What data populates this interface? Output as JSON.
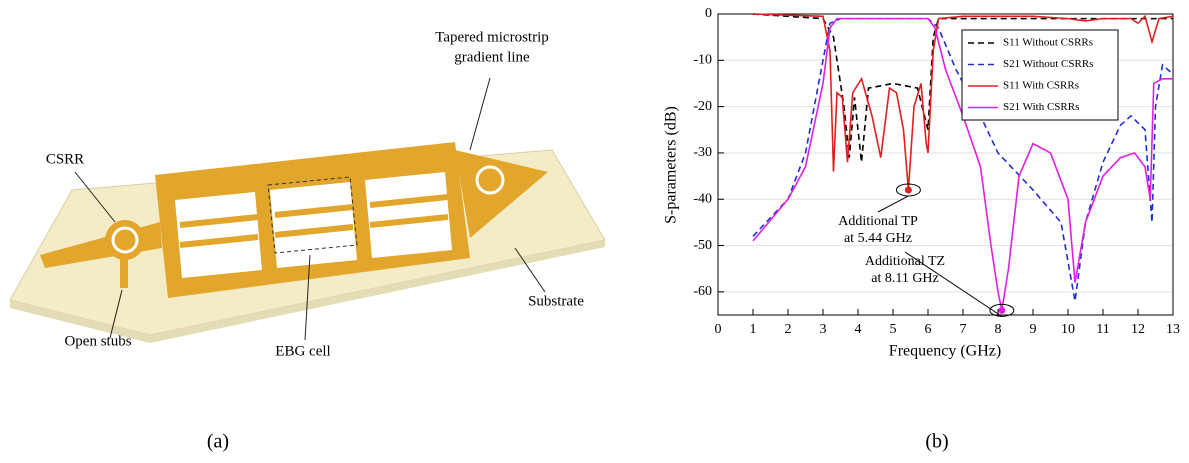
{
  "figure_a": {
    "labels": {
      "tapered": [
        "Tapered microstrip",
        "gradient line"
      ],
      "csrr": "CSRR",
      "open_stubs": "Open stubs",
      "ebg_cell": "EBG cell",
      "substrate": "Substrate"
    },
    "caption": "(a)"
  },
  "chart_data": {
    "type": "line",
    "caption": "(b)",
    "x_label": "Frequency (GHz)",
    "y_label": "S-parameters (dB)",
    "xlim": [
      0,
      13
    ],
    "xticks": [
      0,
      1,
      2,
      3,
      4,
      5,
      6,
      7,
      8,
      9,
      10,
      11,
      12,
      13
    ],
    "ylim": [
      -65,
      0
    ],
    "yticks": [
      0,
      -10,
      -20,
      -30,
      -40,
      -50,
      -60
    ],
    "grid": true,
    "series": [
      {
        "name": "S11 Without CSRRs",
        "color": "#000000",
        "dash": true,
        "x": [
          1,
          3,
          3.3,
          3.6,
          3.75,
          3.9,
          4.1,
          4.3,
          5,
          5.7,
          6.0,
          6.15,
          6.3,
          13
        ],
        "values": [
          0,
          -1,
          -5,
          -20,
          -31,
          -18,
          -32,
          -16,
          -15,
          -16,
          -25,
          -5,
          -1,
          -1
        ]
      },
      {
        "name": "S21 Without CSRRs",
        "color": "#2030d0",
        "dash": true,
        "x": [
          1,
          2,
          2.5,
          3,
          3.2,
          3.5,
          6,
          6.3,
          6.8,
          7.5,
          8,
          9,
          9.8,
          10.2,
          10.5,
          11,
          11.5,
          11.8,
          12.2,
          12.4,
          12.5,
          12.7,
          13
        ],
        "values": [
          -48,
          -40,
          -30,
          -10,
          -2,
          -1,
          -1,
          -3,
          -12,
          -22,
          -30,
          -38,
          -45,
          -62,
          -45,
          -32,
          -24,
          -22,
          -25,
          -45,
          -20,
          -11,
          -13
        ]
      },
      {
        "name": "S11 With CSRRs",
        "color": "#e02020",
        "dash": false,
        "x": [
          1,
          3,
          3.2,
          3.3,
          3.4,
          3.55,
          3.7,
          3.85,
          4.1,
          4.4,
          4.65,
          4.9,
          5.1,
          5.3,
          5.44,
          5.6,
          5.8,
          5.95,
          6.0,
          6.15,
          6.3,
          7,
          9,
          10,
          10.5,
          11,
          11.8,
          12,
          12.2,
          12.4,
          12.6,
          13
        ],
        "values": [
          0,
          -0.5,
          -8,
          -34,
          -17,
          -18,
          -32,
          -17,
          -14,
          -22,
          -31,
          -16,
          -17,
          -25,
          -38,
          -20,
          -15,
          -28,
          -30,
          -8,
          -1,
          -0.5,
          -0.5,
          -1,
          -1.5,
          -1,
          -1,
          -2,
          -0.5,
          -6,
          -1,
          -0.5
        ]
      },
      {
        "name": "S21 With CSRRs",
        "color": "#e020e0",
        "dash": false,
        "x": [
          1,
          2,
          2.5,
          3,
          3.2,
          3.4,
          6,
          6.2,
          6.5,
          7,
          7.5,
          7.8,
          8.0,
          8.11,
          8.3,
          8.6,
          9,
          9.5,
          10,
          10.2,
          10.5,
          11,
          11.5,
          11.9,
          12.2,
          12.35,
          12.45,
          12.7,
          13
        ],
        "values": [
          -49,
          -40,
          -33,
          -15,
          -3,
          -1,
          -1,
          -3,
          -12,
          -22,
          -33,
          -50,
          -60,
          -64,
          -55,
          -35,
          -28,
          -30,
          -40,
          -58,
          -45,
          -35,
          -31,
          -30,
          -33,
          -40,
          -15,
          -14,
          -14
        ]
      }
    ],
    "annotations": [
      [
        "Additional TP",
        "at 5.44 GHz"
      ],
      [
        "Additional TZ",
        "at 8.11 GHz"
      ]
    ]
  }
}
